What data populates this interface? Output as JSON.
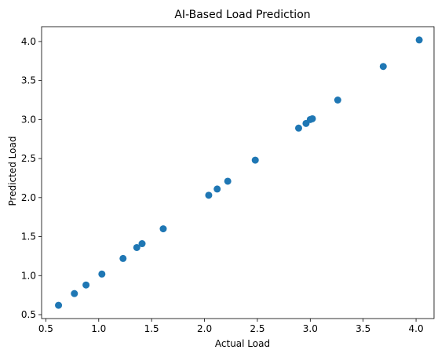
{
  "chart_data": {
    "type": "scatter",
    "title": "AI-Based Load Prediction",
    "xlabel": "Actual Load",
    "ylabel": "Predicted Load",
    "xlim": [
      0.46,
      4.17
    ],
    "ylim": [
      0.45,
      4.19
    ],
    "xticks": [
      0.5,
      1.0,
      1.5,
      2.0,
      2.5,
      3.0,
      3.5,
      4.0
    ],
    "xtick_labels": [
      "0.5",
      "1.0",
      "1.5",
      "2.0",
      "2.5",
      "3.0",
      "3.5",
      "4.0"
    ],
    "yticks": [
      0.5,
      1.0,
      1.5,
      2.0,
      2.5,
      3.0,
      3.5,
      4.0
    ],
    "ytick_labels": [
      "0.5",
      "1.0",
      "1.5",
      "2.0",
      "2.5",
      "3.0",
      "3.5",
      "4.0"
    ],
    "grid": false,
    "marker_color": "#1f77b4",
    "series": [
      {
        "points": [
          {
            "x": 0.62,
            "y": 0.62
          },
          {
            "x": 0.77,
            "y": 0.77
          },
          {
            "x": 0.88,
            "y": 0.88
          },
          {
            "x": 1.03,
            "y": 1.02
          },
          {
            "x": 1.23,
            "y": 1.22
          },
          {
            "x": 1.36,
            "y": 1.36
          },
          {
            "x": 1.41,
            "y": 1.41
          },
          {
            "x": 1.61,
            "y": 1.6
          },
          {
            "x": 2.04,
            "y": 2.03
          },
          {
            "x": 2.12,
            "y": 2.11
          },
          {
            "x": 2.22,
            "y": 2.21
          },
          {
            "x": 2.48,
            "y": 2.48
          },
          {
            "x": 2.89,
            "y": 2.89
          },
          {
            "x": 2.96,
            "y": 2.95
          },
          {
            "x": 3.0,
            "y": 3.0
          },
          {
            "x": 3.02,
            "y": 3.01
          },
          {
            "x": 3.26,
            "y": 3.25
          },
          {
            "x": 3.69,
            "y": 3.68
          },
          {
            "x": 4.03,
            "y": 4.02
          }
        ]
      }
    ]
  }
}
